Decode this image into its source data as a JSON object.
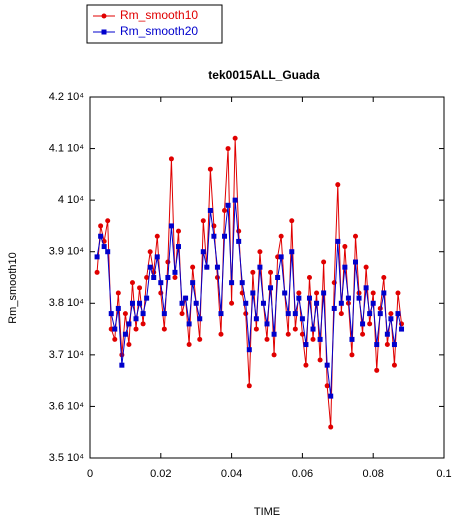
{
  "chart_data": {
    "type": "line",
    "title": "tek0015ALL_Guada",
    "x_label": "TIME",
    "y_label": "Rm_smooth10",
    "legend": "top-left",
    "grid": false,
    "xlim": [
      0,
      0.1
    ],
    "xticks": [
      0,
      0.02,
      0.04,
      0.06,
      0.08,
      0.1
    ],
    "ylim": [
      35000,
      42000
    ],
    "yticks": [
      {
        "value": 35000,
        "label": "3.5 10⁴"
      },
      {
        "value": 36000,
        "label": "3.6 10⁴"
      },
      {
        "value": 37000,
        "label": "3.7 10⁴"
      },
      {
        "value": 38000,
        "label": "3.8 10⁴"
      },
      {
        "value": 39000,
        "label": "3.9 10⁴"
      },
      {
        "value": 40000,
        "label": "4 10⁴"
      },
      {
        "value": 41000,
        "label": "4.1 10⁴"
      },
      {
        "value": 42000,
        "label": "4.2 10⁴"
      }
    ],
    "x": [
      0.002,
      0.003,
      0.004,
      0.005,
      0.006,
      0.007,
      0.008,
      0.009,
      0.01,
      0.011,
      0.012,
      0.013,
      0.014,
      0.015,
      0.016,
      0.017,
      0.018,
      0.019,
      0.02,
      0.021,
      0.022,
      0.023,
      0.024,
      0.025,
      0.026,
      0.027,
      0.028,
      0.029,
      0.03,
      0.031,
      0.032,
      0.033,
      0.034,
      0.035,
      0.036,
      0.037,
      0.038,
      0.039,
      0.04,
      0.041,
      0.042,
      0.043,
      0.044,
      0.045,
      0.046,
      0.047,
      0.048,
      0.049,
      0.05,
      0.051,
      0.052,
      0.053,
      0.054,
      0.055,
      0.056,
      0.057,
      0.058,
      0.059,
      0.06,
      0.061,
      0.062,
      0.063,
      0.064,
      0.065,
      0.066,
      0.067,
      0.068,
      0.069,
      0.07,
      0.071,
      0.072,
      0.073,
      0.074,
      0.075,
      0.076,
      0.077,
      0.078,
      0.079,
      0.08,
      0.081,
      0.082,
      0.083,
      0.084,
      0.085,
      0.086,
      0.087,
      0.088
    ],
    "series": [
      {
        "name": "Rm_smooth10",
        "color": "#e00000",
        "marker": "circle",
        "values": [
          38600,
          39500,
          39200,
          39600,
          37500,
          37300,
          38200,
          37000,
          37800,
          37200,
          38400,
          37500,
          38300,
          37600,
          38500,
          39000,
          38600,
          39300,
          38200,
          37500,
          38800,
          40800,
          38500,
          39400,
          37800,
          38100,
          37200,
          38700,
          38000,
          37300,
          39600,
          38700,
          40600,
          39500,
          38500,
          37400,
          39800,
          41000,
          38000,
          41200,
          39400,
          38200,
          37800,
          36400,
          38600,
          37500,
          39000,
          38000,
          37300,
          38600,
          37000,
          38900,
          39300,
          38200,
          37400,
          39600,
          37500,
          38200,
          37400,
          36800,
          38500,
          37300,
          38200,
          36900,
          38800,
          36400,
          35600,
          38400,
          40300,
          37800,
          39100,
          38000,
          37000,
          39300,
          38200,
          37400,
          38700,
          37600,
          38200,
          36700,
          37900,
          38500,
          37200,
          37800,
          36800,
          38200,
          37600
        ]
      },
      {
        "name": "Rm_smooth20",
        "color": "#0000cc",
        "marker": "square",
        "values": [
          38900,
          39300,
          39100,
          39000,
          37800,
          37500,
          37900,
          36800,
          37400,
          37600,
          38000,
          37700,
          38000,
          37800,
          38100,
          38700,
          38500,
          38900,
          38400,
          37800,
          38500,
          39500,
          38600,
          39100,
          38000,
          38100,
          37600,
          38400,
          38000,
          37700,
          39000,
          38700,
          39800,
          39300,
          38700,
          37800,
          39300,
          39900,
          38400,
          40000,
          39200,
          38400,
          38000,
          37100,
          38200,
          37700,
          38700,
          38000,
          37600,
          38300,
          37400,
          38500,
          38900,
          38200,
          37800,
          39000,
          37800,
          38100,
          37700,
          37200,
          38100,
          37500,
          38000,
          37300,
          38200,
          36800,
          36200,
          37900,
          39200,
          38000,
          38700,
          38100,
          37300,
          38800,
          38100,
          37600,
          38300,
          37800,
          38000,
          37200,
          37800,
          38200,
          37400,
          37700,
          37200,
          37800,
          37500
        ]
      }
    ]
  }
}
